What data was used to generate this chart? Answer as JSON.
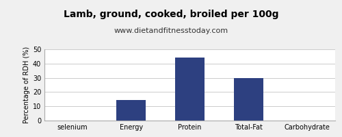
{
  "title": "Lamb, ground, cooked, broiled per 100g",
  "subtitle": "www.dietandfitnesstoday.com",
  "categories": [
    "selenium",
    "Energy",
    "Protein",
    "Total-Fat",
    "Carbohydrate"
  ],
  "values": [
    0,
    14.5,
    44,
    30,
    0
  ],
  "bar_color": "#2d4080",
  "ylabel": "Percentage of RDH (%)",
  "ylim": [
    0,
    50
  ],
  "yticks": [
    0,
    10,
    20,
    30,
    40,
    50
  ],
  "background_color": "#f0f0f0",
  "plot_background": "#ffffff",
  "title_fontsize": 10,
  "subtitle_fontsize": 8,
  "ylabel_fontsize": 7,
  "tick_fontsize": 7,
  "grid_color": "#cccccc",
  "spine_color": "#aaaaaa"
}
